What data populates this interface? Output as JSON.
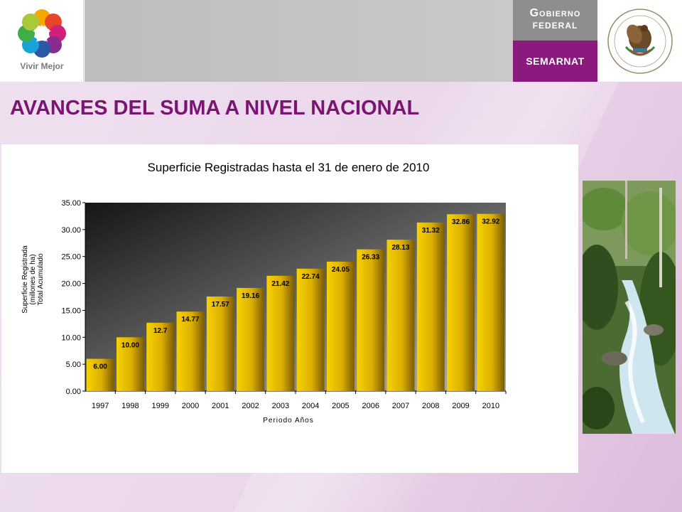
{
  "header": {
    "logo_text": "Vivir Mejor",
    "gobierno_line1": "Gobierno",
    "gobierno_line2": "Federal",
    "agency": "SEMARNAT"
  },
  "colors": {
    "accent_purple": "#8b1a7e",
    "title_purple": "#7b1473",
    "bar_gold": "#f2c200"
  },
  "page": {
    "title": "AVANCES DEL SUMA A NIVEL NACIONAL"
  },
  "chart_data": {
    "type": "bar",
    "title": "Superficie Registradas hasta el 31 de enero de 2010",
    "xlabel": "Periodo Años",
    "ylabel_lines": [
      "Superficie Registrada",
      "(millones de ha)",
      "Total Acumulado"
    ],
    "categories": [
      "1997",
      "1998",
      "1999",
      "2000",
      "2001",
      "2002",
      "2003",
      "2004",
      "2005",
      "2006",
      "2007",
      "2008",
      "2009",
      "2010"
    ],
    "values": [
      6.0,
      10.0,
      12.7,
      14.77,
      17.57,
      19.16,
      21.42,
      22.74,
      24.05,
      26.33,
      28.13,
      31.32,
      32.86,
      32.92
    ],
    "value_labels": [
      "6.00",
      "10.00",
      "12.7",
      "14.77",
      "17.57",
      "19.16",
      "21.42",
      "22.74",
      "24.05",
      "26.33",
      "28.13",
      "31.32",
      "32.86",
      "32.92"
    ],
    "ylim": [
      0,
      35
    ],
    "yticks": [
      0,
      5,
      10,
      15,
      20,
      25,
      30,
      35
    ],
    "ytick_labels": [
      "0.00",
      "5.00",
      "10.00",
      "15.00",
      "20.00",
      "25.00",
      "30.00",
      "35.00"
    ],
    "grid": false,
    "legend": "none"
  }
}
